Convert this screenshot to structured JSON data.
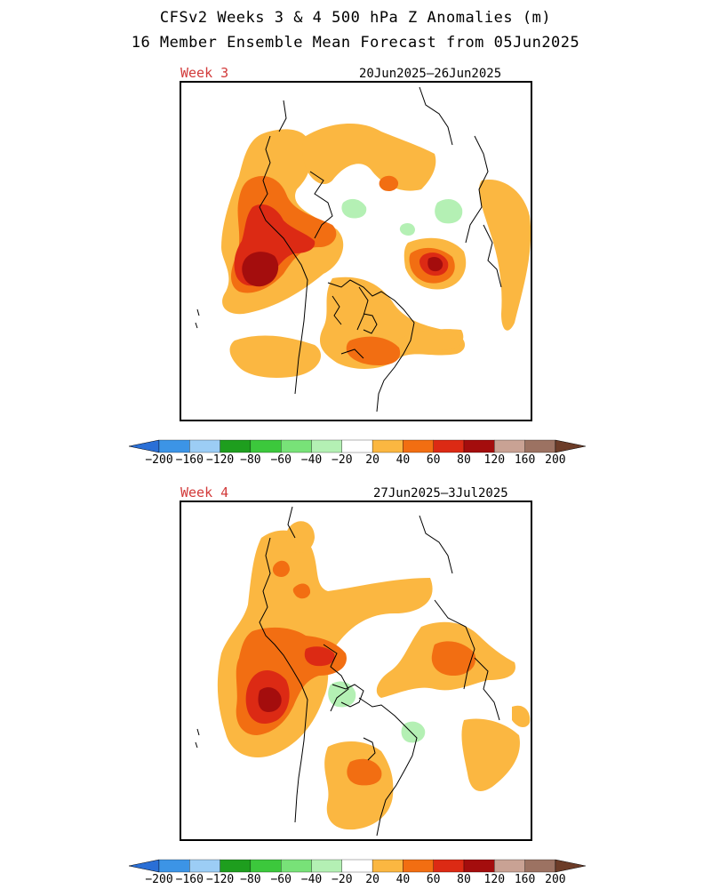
{
  "title_line1": "CFSv2 Weeks 3 & 4 500 hPa Z Anomalies (m)",
  "title_line2": "16 Member Ensemble Mean Forecast from 05Jun2025",
  "panels": [
    {
      "label": "Week 3",
      "dates": "20Jun2025—26Jun2025"
    },
    {
      "label": "Week 4",
      "dates": "27Jun2025—3Jul2025"
    }
  ],
  "colorbar": {
    "labels": [
      "−200",
      "−160",
      "−120",
      "−80",
      "−60",
      "−40",
      "−20",
      "20",
      "40",
      "60",
      "80",
      "120",
      "160",
      "200"
    ],
    "colors": [
      "#2a6fd6",
      "#3c94e6",
      "#9ccdf5",
      "#1e9e1e",
      "#3cc83c",
      "#78e278",
      "#b4f0b4",
      "#ffffff",
      "#fbb741",
      "#f26e12",
      "#dc2a14",
      "#a40d0d",
      "#c9a294",
      "#9c7262",
      "#6c3c28"
    ]
  },
  "colors": {
    "anomaly_20": "#fbb741",
    "anomaly_40": "#f26e12",
    "anomaly_60": "#dc2a14",
    "anomaly_80": "#a40d0d",
    "anomaly_neg20": "#b4f0b4",
    "panel_label": "#d23a3a"
  }
}
